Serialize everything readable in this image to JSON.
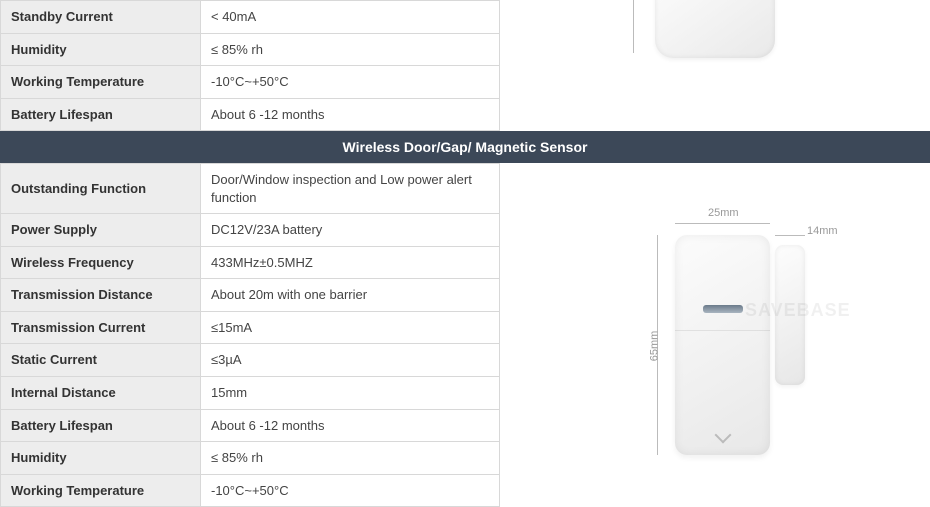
{
  "top_table": {
    "rows": [
      {
        "label": "Standby Current",
        "value": "< 40mA"
      },
      {
        "label": "Humidity",
        "value": "≤ 85% rh"
      },
      {
        "label": "Working Temperature",
        "value": "-10°C~+50°C"
      },
      {
        "label": "Battery Lifespan",
        "value": "About 6 -12 months"
      }
    ]
  },
  "section_header": "Wireless Door/Gap/ Magnetic Sensor",
  "bottom_table": {
    "rows": [
      {
        "label": "Outstanding Function",
        "value": "Door/Window inspection and Low power alert function"
      },
      {
        "label": "Power Supply",
        "value": "DC12V/23A battery"
      },
      {
        "label": "Wireless Frequency",
        "value": "433MHz±0.5MHZ"
      },
      {
        "label": "Transmission Distance",
        "value": "About 20m with one barrier"
      },
      {
        "label": "Transmission Current",
        "value": "≤15mA"
      },
      {
        "label": "Static Current",
        "value": "≤3µA"
      },
      {
        "label": "Internal Distance",
        "value": "15mm"
      },
      {
        "label": "Battery Lifespan",
        "value": "About 6 -12 months"
      },
      {
        "label": "Humidity",
        "value": "≤ 85% rh"
      },
      {
        "label": "Working Temperature",
        "value": "-10°C~+50°C"
      }
    ]
  },
  "door_sensor": {
    "width_label": "25mm",
    "mag_width_label": "14mm",
    "height_label": "65mm",
    "watermark": "SAVEBASE"
  },
  "colors": {
    "header_bg": "#3c4858",
    "header_text": "#ffffff",
    "row_label_bg": "#ededed",
    "border": "#d8d8d8",
    "dim_text": "#999999"
  }
}
